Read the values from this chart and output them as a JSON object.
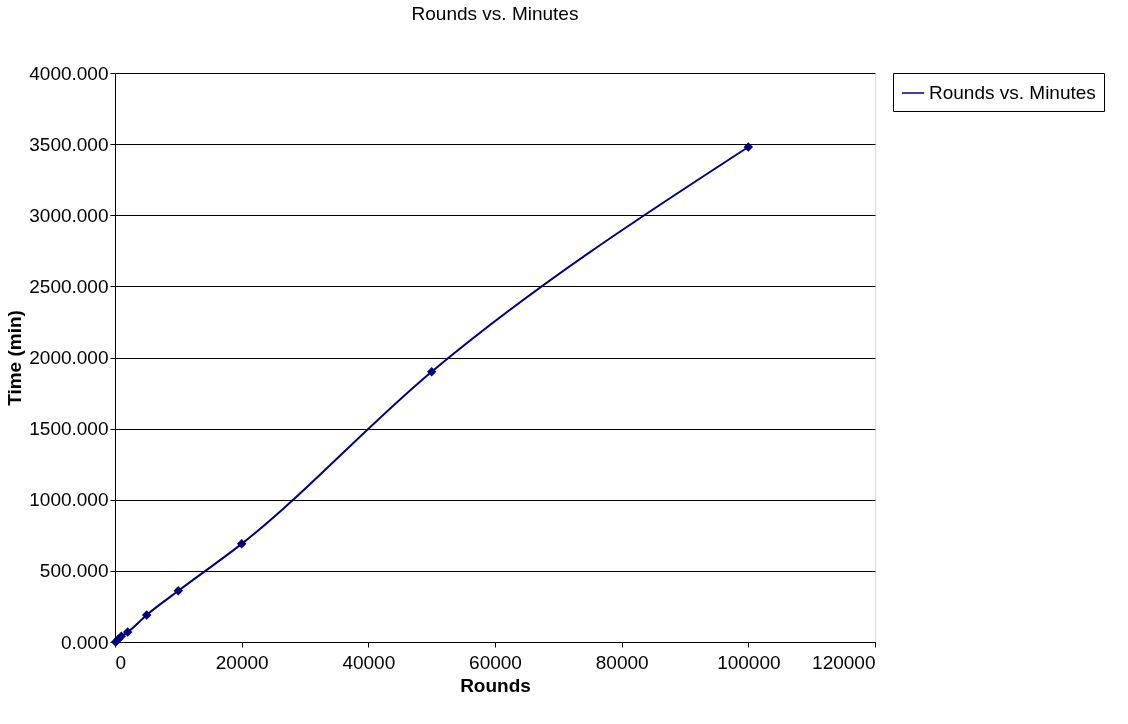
{
  "chart_data": {
    "type": "line",
    "title": "Rounds vs. Minutes",
    "xlabel": "Rounds",
    "ylabel": "Time (min)",
    "series": [
      {
        "name": "Rounds vs. Minutes",
        "color": "#000080",
        "x": [
          100,
          500,
          1000,
          2000,
          5000,
          10000,
          20000,
          50000,
          100000
        ],
        "values": [
          0,
          20,
          40,
          70,
          190,
          360,
          690,
          1900,
          3480
        ]
      }
    ],
    "xlim": [
      0,
      120000
    ],
    "xticks": [
      0,
      20000,
      40000,
      60000,
      80000,
      100000,
      120000
    ],
    "ylim": [
      0,
      4000
    ],
    "yticks": [
      {
        "value": 0,
        "label": "0.000"
      },
      {
        "value": 500,
        "label": "500.000"
      },
      {
        "value": 1000,
        "label": "1000.000"
      },
      {
        "value": 1500,
        "label": "1500.000"
      },
      {
        "value": 2000,
        "label": "2000.000"
      },
      {
        "value": 2500,
        "label": "2500.000"
      },
      {
        "value": 3000,
        "label": "3000.000"
      },
      {
        "value": 3500,
        "label": "3500.000"
      },
      {
        "value": 4000,
        "label": "4000.000"
      }
    ],
    "grid": "y",
    "legend": "right",
    "marker": "diamond",
    "line_style": "solid"
  }
}
